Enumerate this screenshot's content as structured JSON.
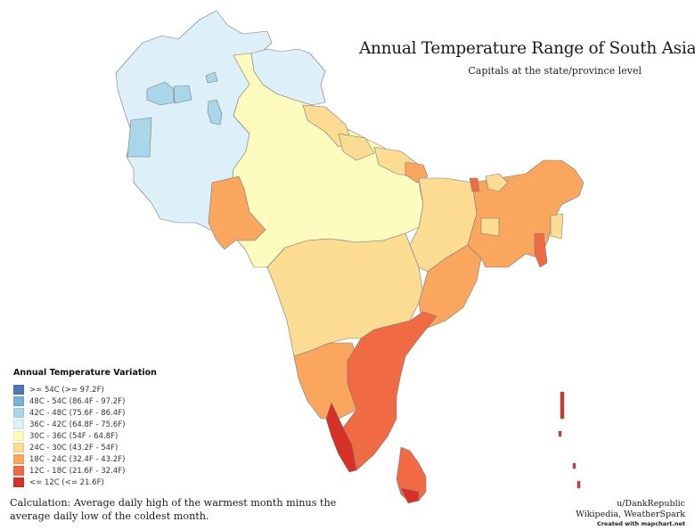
{
  "title": "Annual Temperature Range of South Asia",
  "subtitle": "Capitals at the state/province level",
  "legend": {
    "title": "Annual Temperature Variation",
    "items": [
      {
        "label": ">= 54C (>= 97.2F)",
        "color": "#4a78b8"
      },
      {
        "label": "48C - 54C (86.4F - 97.2F)",
        "color": "#79aedb"
      },
      {
        "label": "42C - 48C (75.6F - 86.4F)",
        "color": "#aad6ea"
      },
      {
        "label": "36C - 42C (64.8F - 75.6F)",
        "color": "#ddeff8"
      },
      {
        "label": "30C - 36C (54F - 64.8F)",
        "color": "#fefbbe"
      },
      {
        "label": "24C - 30C (43.2F - 54F)",
        "color": "#fcdc92"
      },
      {
        "label": "18C - 24C (32.4F - 43.2F)",
        "color": "#fba65f"
      },
      {
        "label": "12C - 18C (21.6F - 32.4F)",
        "color": "#f06a43"
      },
      {
        "label": "<= 12C (<= 21.6F)",
        "color": "#d73027"
      }
    ]
  },
  "regions": [
    {
      "name": "Afghanistan (most provinces)",
      "class": "36C - 42C"
    },
    {
      "name": "Afghanistan (central provinces)",
      "class": "42C - 48C"
    },
    {
      "name": "Balochistan / west Pakistan",
      "class": "36C - 42C"
    },
    {
      "name": "Sindh",
      "class": "18C - 24C"
    },
    {
      "name": "Punjab / Rajasthan / Gujarat / Madhya Pradesh / Uttar Pradesh",
      "class": "30C - 36C"
    },
    {
      "name": "Jammu & Kashmir / Ladakh",
      "class": "36C - 42C"
    },
    {
      "name": "Nepal (western)",
      "class": "24C - 30C"
    },
    {
      "name": "Bihar / Jharkhand / Chhattisgarh",
      "class": "24C - 30C"
    },
    {
      "name": "Maharashtra / Telangana",
      "class": "24C - 30C"
    },
    {
      "name": "Odisha",
      "class": "18C - 24C"
    },
    {
      "name": "West Bengal / Bangladesh / Northeast India",
      "class": "18C - 24C"
    },
    {
      "name": "Sikkim / Mizoram",
      "class": "12C - 18C"
    },
    {
      "name": "Karnataka",
      "class": "18C - 24C"
    },
    {
      "name": "Andhra Pradesh / Tamil Nadu",
      "class": "12C - 18C"
    },
    {
      "name": "Kerala",
      "class": "<= 12C"
    },
    {
      "name": "Sri Lanka",
      "class": "12C - 18C"
    },
    {
      "name": "Andaman & Nicobar Islands",
      "class": "<= 12C"
    }
  ],
  "calculation": {
    "line1": "Calculation: Average daily high of the warmest month minus the",
    "line2": "average daily low of the coldest month."
  },
  "credits": {
    "author": "u/DankRepublic",
    "sources": "Wikipedia, WeatherSpark",
    "tool": "Created with mapchart.net"
  }
}
